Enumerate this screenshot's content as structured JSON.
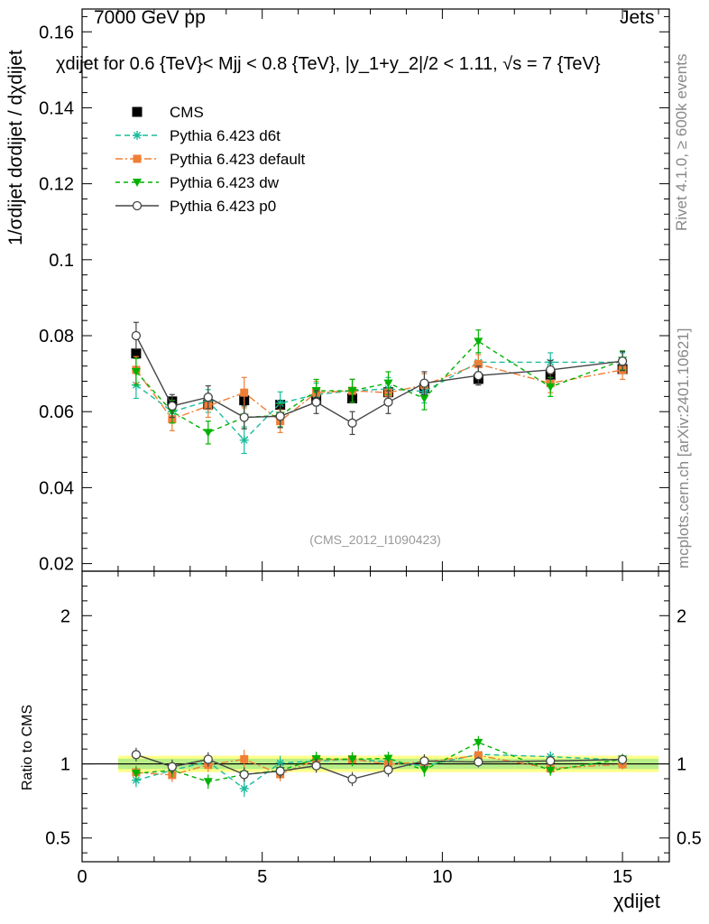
{
  "header": {
    "left": "7000 GeV pp",
    "right": "Jets"
  },
  "side_labels": {
    "rivet": "Rivet 4.1.0, ≥ 600k events",
    "mcplots": "mcplots.cern.ch [arXiv:2401.10621]"
  },
  "watermark": "(CMS_2012_I1090423)",
  "plot_title": "χdijet for 0.6 {TeV}< Mjj < 0.8 {TeV}, |y_1+y_2|/2 < 1.11, √s = 7 {TeV}",
  "y_axis_label": "1/σdijet dσdijet / dχdijet",
  "ratio_axis_label": "Ratio to CMS",
  "x_axis_label": "χdijet",
  "chart_data": {
    "type": "scatter",
    "title": "χ_dijet for 0.6 {TeV}< M_jj < 0.8 {TeV}, |y_1+y_2|/2 < 1.11, √s = 7 {TeV}",
    "xlabel": "χ_dijet",
    "ylabel": "1/σ_dijet dσ_dijet / dχ_dijet",
    "xlim": [
      0,
      16.3
    ],
    "ylim": [
      0.018,
      0.166
    ],
    "ratio_ylim": [
      0.34,
      2.3
    ],
    "x_ticks": [
      0,
      5,
      10,
      15
    ],
    "y_ticks": [
      0.02,
      0.04,
      0.06,
      0.08,
      0.1,
      0.12,
      0.14,
      0.16
    ],
    "ratio_ticks": [
      0.5,
      1,
      2
    ],
    "x": [
      1.5,
      2.5,
      3.5,
      4.5,
      5.5,
      6.5,
      7.5,
      8.5,
      9.5,
      11,
      13,
      15
    ],
    "x_bins": [
      [
        1,
        2
      ],
      [
        2,
        3
      ],
      [
        3,
        4
      ],
      [
        4,
        5
      ],
      [
        5,
        6
      ],
      [
        6,
        7
      ],
      [
        7,
        8
      ],
      [
        8,
        9
      ],
      [
        9,
        10
      ],
      [
        10,
        12
      ],
      [
        12,
        14
      ],
      [
        14,
        16
      ]
    ],
    "reference": {
      "name": "CMS",
      "values": [
        0.0753,
        0.0627,
        0.0619,
        0.063,
        0.0618,
        0.0633,
        0.0635,
        0.0651,
        0.0662,
        0.0686,
        0.0696,
        0.0712
      ],
      "band_inner": 0.035,
      "band_outer": 0.055
    },
    "series": [
      {
        "name": "Pythia 6.423 d6t",
        "color": "#1abc9c",
        "marker": "star",
        "dash": "6,4",
        "values": [
          0.067,
          0.06,
          0.0628,
          0.0525,
          0.0622,
          0.0645,
          0.0655,
          0.066,
          0.0653,
          0.073,
          0.073,
          0.073
        ],
        "errors": [
          0.0035,
          0.003,
          0.003,
          0.0035,
          0.003,
          0.003,
          0.003,
          0.003,
          0.003,
          0.0025,
          0.0025,
          0.0025
        ]
      },
      {
        "name": "Pythia 6.423 default",
        "color": "#f07e35",
        "marker": "square",
        "dash": "8,3,2,3",
        "values": [
          0.071,
          0.058,
          0.0615,
          0.065,
          0.0575,
          0.065,
          0.0655,
          0.065,
          0.067,
          0.0725,
          0.0675,
          0.071
        ],
        "errors": [
          0.0035,
          0.003,
          0.003,
          0.004,
          0.003,
          0.003,
          0.003,
          0.003,
          0.003,
          0.0025,
          0.0025,
          0.0025
        ]
      },
      {
        "name": "Pythia 6.423 dw",
        "color": "#00b200",
        "marker": "tri",
        "dash": "5,4",
        "values": [
          0.0705,
          0.06,
          0.0545,
          0.0585,
          0.059,
          0.0655,
          0.0655,
          0.0675,
          0.0635,
          0.0785,
          0.0665,
          0.0735
        ],
        "errors": [
          0.0035,
          0.003,
          0.003,
          0.003,
          0.003,
          0.003,
          0.003,
          0.003,
          0.003,
          0.003,
          0.0025,
          0.0025
        ]
      },
      {
        "name": "Pythia 6.423 p0",
        "color": "#444444",
        "marker": "circle",
        "dash": "",
        "values": [
          0.08,
          0.0615,
          0.0638,
          0.0585,
          0.0588,
          0.0625,
          0.057,
          0.0625,
          0.0675,
          0.0695,
          0.071,
          0.0733
        ],
        "errors": [
          0.0035,
          0.003,
          0.003,
          0.003,
          0.003,
          0.003,
          0.003,
          0.003,
          0.003,
          0.0025,
          0.0025,
          0.0025
        ]
      }
    ]
  }
}
